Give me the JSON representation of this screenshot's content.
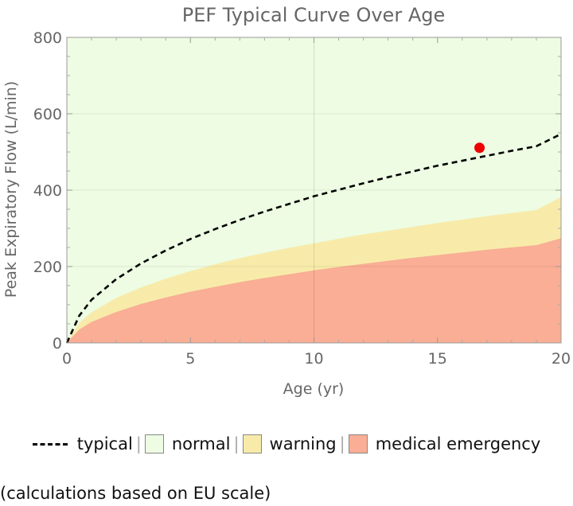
{
  "chart_data": {
    "type": "area",
    "title": "PEF Typical Curve Over Age",
    "xlabel": "Age (yr)",
    "ylabel": "Peak Expiratory Flow  (L/min)",
    "xlim": [
      0,
      20
    ],
    "ylim": [
      0,
      800
    ],
    "x_ticks": [
      "0",
      "5",
      "10",
      "15",
      "20"
    ],
    "y_ticks": [
      "0",
      "200",
      "400",
      "600",
      "800"
    ],
    "x": [
      0,
      0.5,
      1,
      2,
      3,
      4,
      5,
      6,
      7,
      8,
      9,
      10,
      11,
      12,
      13,
      14,
      15,
      16,
      17,
      18,
      19,
      20
    ],
    "series": [
      {
        "name": "typical",
        "style": "dashed-line",
        "color": "#000000",
        "values": [
          0,
          71,
          113,
          167,
          208,
          242,
          272,
          298,
          322,
          344,
          364,
          384,
          401,
          418,
          434,
          449,
          464,
          477,
          490,
          503,
          515,
          547
        ]
      },
      {
        "name": "normal",
        "style": "area",
        "color": "#edfce3",
        "values": [
          800,
          800,
          800,
          800,
          800,
          800,
          800,
          800,
          800,
          800,
          800,
          800,
          800,
          800,
          800,
          800,
          800,
          800,
          800,
          800,
          800,
          800
        ]
      },
      {
        "name": "warning",
        "style": "area",
        "color": "#f8ebaa",
        "values": [
          0,
          52,
          80,
          118,
          145,
          168,
          188,
          206,
          222,
          236,
          249,
          261,
          273,
          284,
          294,
          304,
          314,
          323,
          332,
          340,
          348,
          382
        ]
      },
      {
        "name": "medical emergency",
        "style": "area",
        "color": "#f9ae95",
        "values": [
          0,
          35,
          55,
          81,
          102,
          119,
          134,
          147,
          159,
          170,
          180,
          190,
          199,
          207,
          215,
          223,
          230,
          237,
          244,
          250,
          256,
          274
        ]
      }
    ],
    "highlight_point": {
      "x": 16.7,
      "y": 511,
      "color": "#ee0000"
    },
    "grid": true
  },
  "legend": {
    "typical": "typical",
    "normal": "normal",
    "warning": "warning",
    "emergency": "medical emergency",
    "separator": "|"
  },
  "colors": {
    "normal": "#edfce3",
    "warning": "#f8ebaa",
    "emergency": "#f9ae95",
    "typical": "#000000",
    "point": "#ee0000"
  },
  "footnote": "(calculations based on EU scale)"
}
